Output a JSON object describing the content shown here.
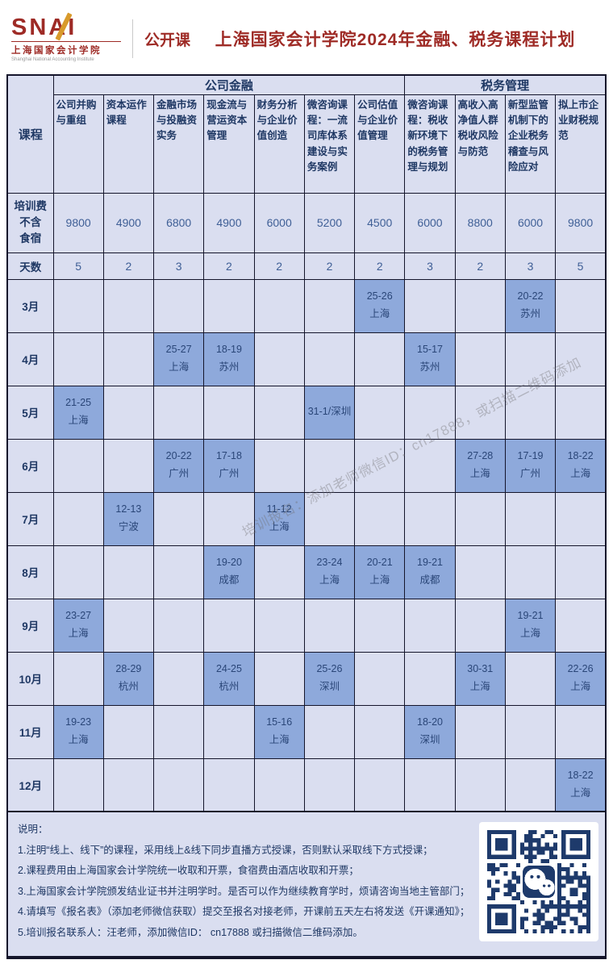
{
  "header": {
    "logo": {
      "acronym": "SNAI",
      "cn": "上海国家会计学院",
      "en": "Shanghai National Accounting Institute"
    },
    "tag": "公开课",
    "title": "上海国家会计学院2024年金融、税务课程计划"
  },
  "colors": {
    "accent_red": "#9e2b26",
    "cell_bg": "#dadef0",
    "highlight_bg": "#8ea9db",
    "text_navy": "#1f3864",
    "qr_navy": "#1e3a6b"
  },
  "watermark": "培训报名：添加老师微信ID：cn17888，或扫描二维码添加",
  "table": {
    "corner_label": "课程",
    "groups": [
      {
        "label": "公司金融",
        "span": 7
      },
      {
        "label": "税务管理",
        "span": 4
      }
    ],
    "courses": [
      "公司并购与重组",
      "资本运作课程",
      "金融市场与投融资实务",
      "现金流与营运资本管理",
      "财务分析与企业价值创造",
      "微咨询课程：一流司库体系建设与实务案例",
      "公司估值与企业价值管理",
      "微咨询课程：税收新环境下的税务管理与规划",
      "高收入高净值人群税收风险与防范",
      "新型监管机制下的企业税务稽查与风险应对",
      "拟上市企业财税规范"
    ],
    "fee_label": "培训费\n不含\n食宿",
    "fees": [
      9800,
      4900,
      6800,
      4900,
      6000,
      5200,
      4500,
      6000,
      8800,
      6000,
      9800
    ],
    "days_label": "天数",
    "days": [
      5,
      2,
      3,
      2,
      2,
      2,
      2,
      3,
      2,
      3,
      5
    ],
    "months": [
      {
        "label": "3月",
        "cells": [
          "",
          "",
          "",
          "",
          "",
          "",
          "25-26\n上海",
          "",
          "",
          "20-22\n苏州",
          ""
        ]
      },
      {
        "label": "4月",
        "cells": [
          "",
          "",
          "25-27\n上海",
          "18-19\n苏州",
          "",
          "",
          "",
          "15-17\n苏州",
          "",
          "",
          ""
        ]
      },
      {
        "label": "5月",
        "cells": [
          "21-25\n上海",
          "",
          "",
          "",
          "",
          "31-1/深圳",
          "",
          "",
          "",
          "",
          ""
        ]
      },
      {
        "label": "6月",
        "cells": [
          "",
          "",
          "20-22\n广州",
          "17-18\n广州",
          "",
          "",
          "",
          "",
          "27-28\n上海",
          "17-19\n广州",
          "18-22\n上海"
        ]
      },
      {
        "label": "7月",
        "cells": [
          "",
          "12-13\n宁波",
          "",
          "",
          "11-12\n上海",
          "",
          "",
          "",
          "",
          "",
          ""
        ]
      },
      {
        "label": "8月",
        "cells": [
          "",
          "",
          "",
          "19-20\n成都",
          "",
          "23-24\n上海",
          "20-21\n上海",
          "19-21\n成都",
          "",
          "",
          ""
        ]
      },
      {
        "label": "9月",
        "cells": [
          "23-27\n上海",
          "",
          "",
          "",
          "",
          "",
          "",
          "",
          "",
          "19-21\n上海",
          ""
        ]
      },
      {
        "label": "10月",
        "cells": [
          "",
          "28-29\n杭州",
          "",
          "24-25\n杭州",
          "",
          "25-26\n深圳",
          "",
          "",
          "30-31\n上海",
          "",
          "22-26\n上海"
        ]
      },
      {
        "label": "11月",
        "cells": [
          "19-23\n上海",
          "",
          "",
          "",
          "15-16\n上海",
          "",
          "",
          "18-20\n深圳",
          "",
          "",
          ""
        ]
      },
      {
        "label": "12月",
        "cells": [
          "",
          "",
          "",
          "",
          "",
          "",
          "",
          "",
          "",
          "",
          "18-22\n上海"
        ]
      }
    ]
  },
  "notes": {
    "title": "说明：",
    "items": [
      "1.注明“线上、线下”的课程，采用线上&线下同步直播方式授课，否则默认采取线下方式授课；",
      "2.课程费用由上海国家会计学院统一收取和开票，食宿费由酒店收取和开票；",
      "3.上海国家会计学院颁发结业证书并注明学时。是否可以作为继续教育学时，烦请咨询当地主管部门；",
      "4.请填写《报名表》（添加老师微信获取）提交至报名对接老师，开课前五天左右将发送《开课通知》；",
      "5.培训报名联系人：汪老师，添加微信ID： cn17888 或扫描微信二维码添加。"
    ]
  }
}
